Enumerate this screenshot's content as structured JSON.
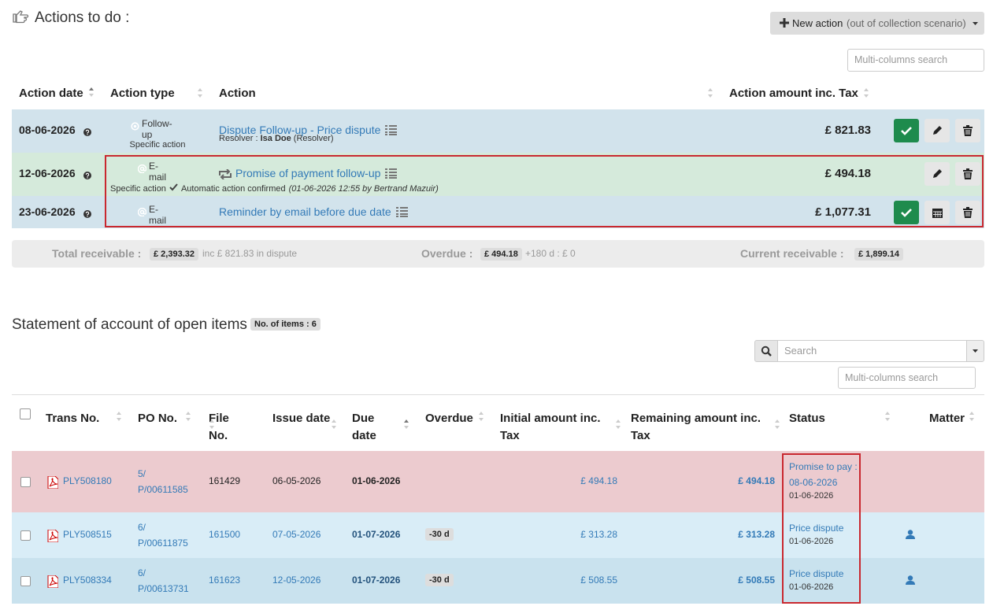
{
  "actions": {
    "title": "Actions to do :",
    "new_action": {
      "label": "New action",
      "note": "(out of collection scenario)"
    },
    "search_placeholder": "Multi-columns search",
    "columns": [
      "Action date",
      "Action type",
      "Action",
      "Action amount inc. Tax"
    ],
    "rows": [
      {
        "date": "08-06-2026",
        "type": "Follow-up",
        "type_note": "Specific action",
        "action": "Dispute Follow-up - Price dispute",
        "detail_label": "Resolver :",
        "detail_name": "Isa Doe",
        "detail_role": "(Resolver)",
        "amount": "£ 821.83"
      },
      {
        "date": "12-06-2026",
        "type": "E-mail",
        "type_note": "Specific action",
        "action": "Promise of payment follow-up",
        "confirm": "Automatic action confirmed",
        "confirm_meta": "(01-06-2026 12:55 by Bertrand Mazuir)",
        "amount": "£ 494.18"
      },
      {
        "date": "23-06-2026",
        "type": "E-mail",
        "action": "Reminder by email before due date",
        "amount": "£ 1,077.31"
      }
    ],
    "summary": {
      "total_label": "Total receivable :",
      "total": "£ 2,393.32",
      "dispute": "inc £ 821.83 in dispute",
      "overdue_label": "Overdue :",
      "overdue": "£ 494.18",
      "overdue_180": "+180 d : £ 0",
      "current_label": "Current receivable :",
      "current": "£ 1,899.14"
    }
  },
  "statement": {
    "title": "Statement of account of open items",
    "badge": "No. of items : 6",
    "search_placeholder": "Search",
    "multi_search_placeholder": "Multi-columns search",
    "columns": [
      "Trans No.",
      "PO No.",
      "File No.",
      "Issue date",
      "Due date",
      "Overdue",
      "Initial amount inc. Tax",
      "Remaining amount inc. Tax",
      "Status",
      "Matter"
    ],
    "rows": [
      {
        "trans": "PLY508180",
        "po": "5/ P/00611585",
        "file": "161429",
        "issue": "06-05-2026",
        "due": "01-06-2026",
        "initial": "£ 494.18",
        "remaining": "£ 494.18",
        "status": "Promise to pay : 08-06-2026",
        "status_date": "01-06-2026"
      },
      {
        "trans": "PLY508515",
        "po": "6/ P/00611875",
        "file": "161500",
        "issue": "07-05-2026",
        "due": "01-07-2026",
        "overdue": "-30 d",
        "initial": "£ 313.28",
        "remaining": "£ 313.28",
        "status": "Price dispute",
        "status_date": "01-06-2026"
      },
      {
        "trans": "PLY508334",
        "po": "6/ P/00613731",
        "file": "161623",
        "issue": "12-05-2026",
        "due": "01-07-2026",
        "overdue": "-30 d",
        "initial": "£ 508.55",
        "remaining": "£ 508.55",
        "status": "Price dispute",
        "status_date": "01-06-2026"
      }
    ]
  }
}
